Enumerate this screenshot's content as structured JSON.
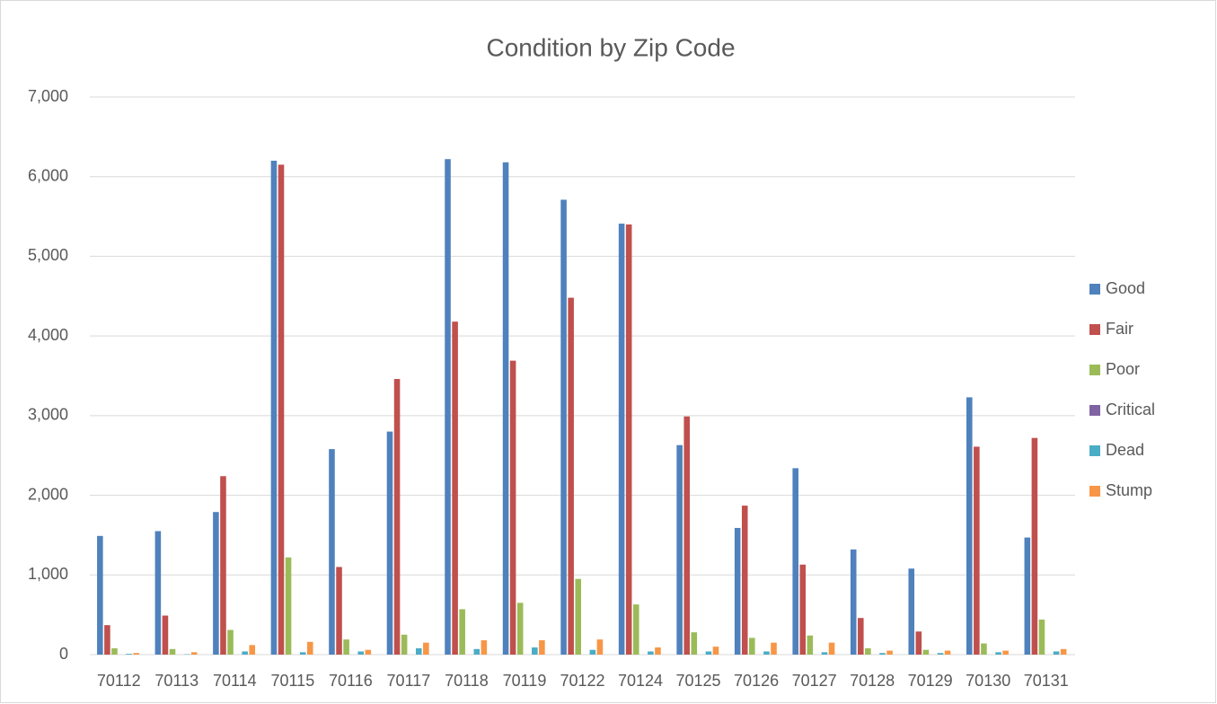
{
  "chart_data": {
    "type": "bar",
    "title": "Condition by Zip Code",
    "categories": [
      "70112",
      "70113",
      "70114",
      "70115",
      "70116",
      "70117",
      "70118",
      "70119",
      "70122",
      "70124",
      "70125",
      "70126",
      "70127",
      "70128",
      "70129",
      "70130",
      "70131"
    ],
    "series": [
      {
        "name": "Good",
        "color": "#4f81bd",
        "values": [
          1490,
          1550,
          1790,
          6200,
          2580,
          2800,
          6220,
          6180,
          5710,
          5410,
          2630,
          1590,
          2340,
          1320,
          1080,
          3230,
          1470
        ]
      },
      {
        "name": "Fair",
        "color": "#c0504d",
        "values": [
          370,
          490,
          2240,
          6150,
          1100,
          3460,
          4180,
          3690,
          4480,
          5400,
          2990,
          1870,
          1130,
          460,
          290,
          2610,
          2720
        ]
      },
      {
        "name": "Poor",
        "color": "#9bbb59",
        "values": [
          80,
          70,
          310,
          1220,
          190,
          250,
          570,
          650,
          950,
          630,
          280,
          210,
          240,
          80,
          60,
          140,
          440
        ]
      },
      {
        "name": "Critical",
        "color": "#8064a2",
        "values": [
          0,
          0,
          0,
          0,
          0,
          0,
          0,
          0,
          0,
          0,
          0,
          0,
          0,
          0,
          0,
          0,
          0
        ]
      },
      {
        "name": "Dead",
        "color": "#4bacc6",
        "values": [
          10,
          5,
          40,
          30,
          40,
          80,
          70,
          90,
          60,
          40,
          40,
          40,
          30,
          20,
          20,
          30,
          40
        ]
      },
      {
        "name": "Stump",
        "color": "#f79646",
        "values": [
          20,
          30,
          120,
          160,
          60,
          150,
          180,
          180,
          190,
          90,
          100,
          150,
          150,
          50,
          50,
          50,
          70
        ]
      }
    ],
    "ylim": [
      0,
      7000
    ],
    "yticks": [
      0,
      {
        "value": 1000,
        "label": "1,000"
      },
      {
        "value": 2000,
        "label": "2,000"
      },
      {
        "value": 3000,
        "label": "3,000"
      },
      {
        "value": 4000,
        "label": "4,000"
      },
      {
        "value": 5000,
        "label": "5,000"
      },
      {
        "value": 6000,
        "label": "6,000"
      },
      {
        "value": 7000,
        "label": "7,000"
      }
    ],
    "grid": true,
    "legend": "right"
  }
}
